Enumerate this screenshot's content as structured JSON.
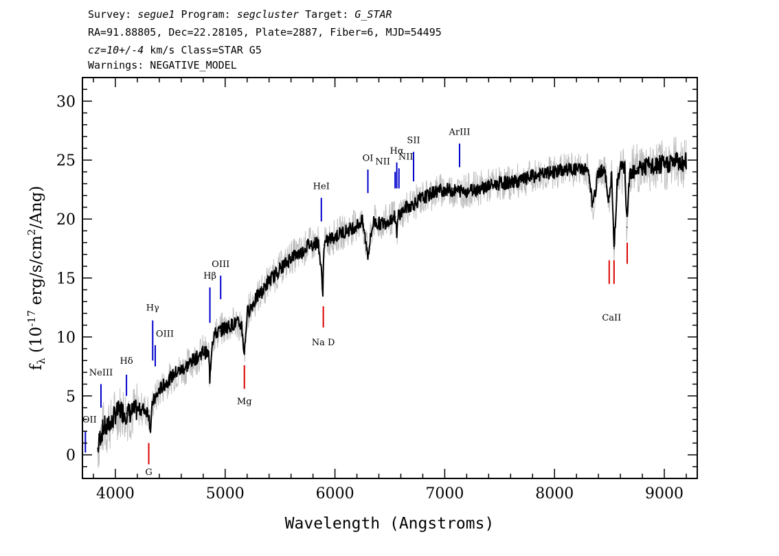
{
  "header": {
    "line1": {
      "survey_label": "Survey: ",
      "survey": "segue1",
      "program_label": " Program: ",
      "program": "segcluster",
      "target_label": " Target: ",
      "target": "G_STAR"
    },
    "line2": "RA=91.88805, Dec=22.28105, Plate=2887, Fiber=6, MJD=54495",
    "line3": {
      "cz": "cz=10+/-4",
      "rest": " km/s Class=STAR G5"
    },
    "line4": "Warnings: NEGATIVE_MODEL"
  },
  "colors": {
    "flux": "#000000",
    "error": "#bdbdbd",
    "emission": "#0000cc",
    "absorption": "#dd0000"
  },
  "chart_data": {
    "type": "line",
    "xlabel": "Wavelength (Angstroms)",
    "ylabel": "f_λ (10^-17 erg/s/cm^2/Ang)",
    "xlim": [
      3700,
      9300
    ],
    "ylim": [
      -2,
      32
    ],
    "xticks": [
      4000,
      5000,
      6000,
      7000,
      8000,
      9000
    ],
    "yticks": [
      0,
      5,
      10,
      15,
      20,
      25,
      30
    ],
    "series": [
      {
        "x": [
          3840,
          3860,
          3880,
          3900,
          3920,
          3940,
          3960,
          3980,
          4000,
          4050,
          4100,
          4150,
          4200,
          4250,
          4300,
          4320,
          4340,
          4380,
          4400,
          4450,
          4500,
          4550,
          4600,
          4650,
          4700,
          4750,
          4800,
          4850,
          4860,
          4880,
          4900,
          4950,
          5000,
          5050,
          5100,
          5150,
          5175,
          5200,
          5250,
          5300,
          5350,
          5400,
          5450,
          5500,
          5550,
          5600,
          5650,
          5700,
          5750,
          5800,
          5850,
          5890,
          5900,
          5950,
          6000,
          6050,
          6100,
          6150,
          6200,
          6250,
          6300,
          6350,
          6400,
          6450,
          6500,
          6550,
          6563,
          6580,
          6600,
          6650,
          6700,
          6750,
          6800,
          6850,
          6900,
          6950,
          7000,
          7100,
          7200,
          7300,
          7400,
          7500,
          7600,
          7700,
          7800,
          7900,
          8000,
          8100,
          8200,
          8300,
          8350,
          8400,
          8450,
          8498,
          8520,
          8542,
          8570,
          8600,
          8640,
          8662,
          8680,
          8700,
          8750,
          8800,
          8850,
          8900,
          8950,
          9000,
          9050,
          9100,
          9150,
          9200
        ],
        "y": [
          0.5,
          1.5,
          2.0,
          2.5,
          2.0,
          3.0,
          2.5,
          3.0,
          3.5,
          3.8,
          3.5,
          3.6,
          3.8,
          3.9,
          3.7,
          2.2,
          4.5,
          5.0,
          5.5,
          6.0,
          6.5,
          7.0,
          7.2,
          7.5,
          8.0,
          8.3,
          8.8,
          8.5,
          6.5,
          9.5,
          10.2,
          10.5,
          10.8,
          11.0,
          11.2,
          11.0,
          8.5,
          12.0,
          12.8,
          13.5,
          14.0,
          14.8,
          15.2,
          15.8,
          16.2,
          16.8,
          17.0,
          17.2,
          17.8,
          17.9,
          18.0,
          14.0,
          17.8,
          18.3,
          18.5,
          18.8,
          19.0,
          19.2,
          19.5,
          19.8,
          17.0,
          19.8,
          19.6,
          19.7,
          20.0,
          20.2,
          18.5,
          20.5,
          20.5,
          21.0,
          21.2,
          21.5,
          21.8,
          22.0,
          22.3,
          22.4,
          22.5,
          22.4,
          22.4,
          22.6,
          22.8,
          23.0,
          23.1,
          23.3,
          23.6,
          23.8,
          24.0,
          24.2,
          24.2,
          24.3,
          21.0,
          24.0,
          24.3,
          21.5,
          23.8,
          17.5,
          23.0,
          24.2,
          24.3,
          19.3,
          23.5,
          24.2,
          24.3,
          24.4,
          24.5,
          24.3,
          24.6,
          24.5,
          24.8,
          24.9,
          24.8,
          24.8
        ]
      }
    ],
    "lines": [
      {
        "label": "NeIII",
        "wave": 3869,
        "type": "emission"
      },
      {
        "label": "Hδ",
        "wave": 4101,
        "type": "emission"
      },
      {
        "label": "Hγ",
        "wave": 4340,
        "type": "emission"
      },
      {
        "label": "OIII",
        "wave": 4363,
        "type": "emission"
      },
      {
        "label": "Hβ",
        "wave": 4861,
        "type": "emission"
      },
      {
        "label": "OIII",
        "wave": 4959,
        "type": "emission"
      },
      {
        "label": "HeI",
        "wave": 5876,
        "type": "emission"
      },
      {
        "label": "OI",
        "wave": 6300,
        "type": "emission"
      },
      {
        "label": "NII",
        "wave": 6548,
        "type": "emission"
      },
      {
        "label": "Hα",
        "wave": 6563,
        "type": "emission"
      },
      {
        "label": "NII",
        "wave": 6583,
        "type": "emission"
      },
      {
        "label": "SII",
        "wave": 6716,
        "type": "emission"
      },
      {
        "label": "ArIII",
        "wave": 7135,
        "type": "emission"
      },
      {
        "label": "OII",
        "wave": 3727,
        "type": "emission"
      },
      {
        "label": "G",
        "wave": 4304,
        "type": "absorption"
      },
      {
        "label": "Mg",
        "wave": 5175,
        "type": "absorption"
      },
      {
        "label": "Na D",
        "wave": 5894,
        "type": "absorption"
      },
      {
        "label": "CaII",
        "wave": 8542,
        "type": "absorption"
      }
    ]
  }
}
